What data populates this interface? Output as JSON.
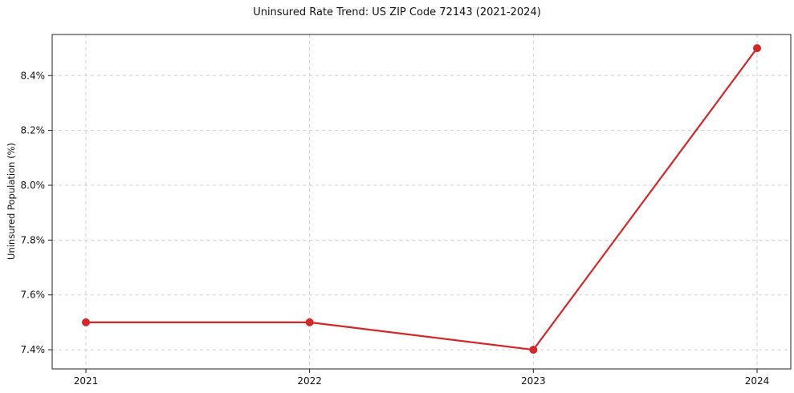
{
  "chart_data": {
    "type": "line",
    "title": "Uninsured Rate Trend: US ZIP Code 72143 (2021-2024)",
    "xlabel": "",
    "ylabel": "Uninsured Population (%)",
    "categories": [
      "2021",
      "2022",
      "2023",
      "2024"
    ],
    "series": [
      {
        "name": "Uninsured Rate",
        "values": [
          7.5,
          7.5,
          7.4,
          8.5
        ],
        "color": "#d62728"
      }
    ],
    "ylim": [
      7.33,
      8.55
    ],
    "yticks": [
      7.4,
      7.6,
      7.8,
      8.0,
      8.2,
      8.4
    ],
    "ytick_format": "percent",
    "grid": true,
    "grid_style": "dashed",
    "grid_color": "#cfcfcf",
    "legend": false,
    "marker": "circle"
  }
}
